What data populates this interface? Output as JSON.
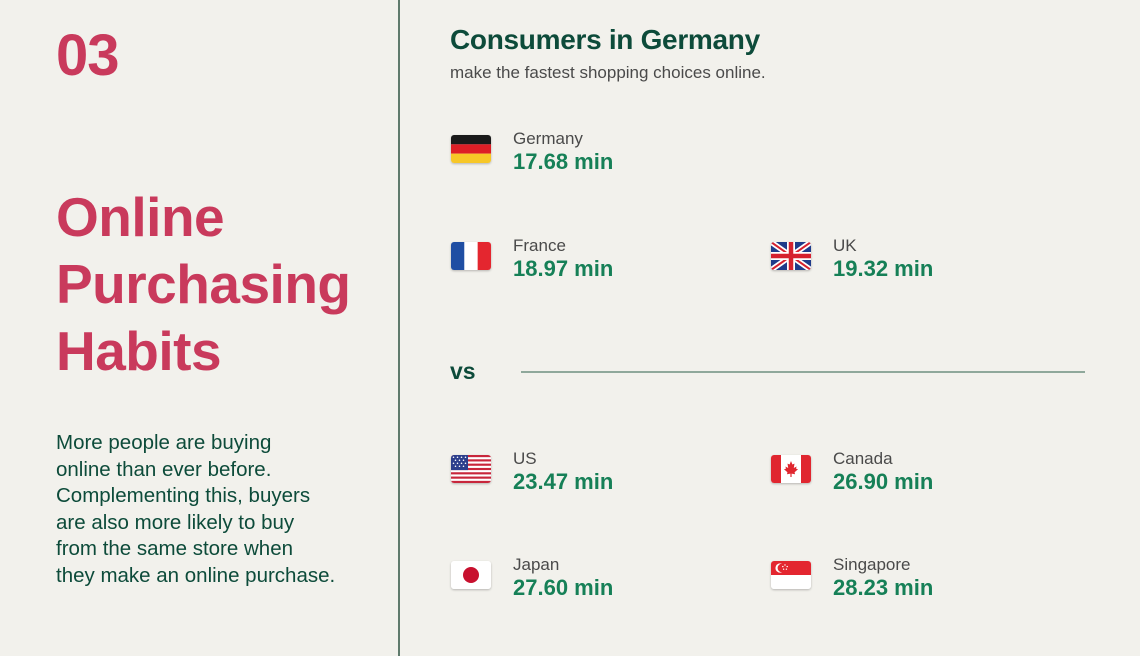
{
  "section_number": "03",
  "heading_lines": [
    "Online",
    "Purchasing",
    "Habits"
  ],
  "description_lines": [
    "More people are buying",
    "online than ever before.",
    "Complementing this, buyers",
    "are also more likely to buy",
    "from the same store when",
    "they make an online purchase."
  ],
  "title": "Consumers in Germany",
  "subtitle": "make the fastest shopping choices online.",
  "vs_label": "vs",
  "colors": {
    "accent_red": "#c93a5c",
    "dark_green": "#0d4b3a",
    "time_green": "#168057",
    "background": "#f2f1ec"
  },
  "entries": [
    {
      "flag": "germany-flag-icon",
      "country": "Germany",
      "time": "17.68 min"
    },
    {
      "flag": "france-flag-icon",
      "country": "France",
      "time": "18.97 min"
    },
    {
      "flag": "uk-flag-icon",
      "country": "UK",
      "time": "19.32 min"
    },
    {
      "flag": "us-flag-icon",
      "country": "US",
      "time": "23.47 min"
    },
    {
      "flag": "canada-flag-icon",
      "country": "Canada",
      "time": "26.90 min"
    },
    {
      "flag": "japan-flag-icon",
      "country": "Japan",
      "time": "27.60 min"
    },
    {
      "flag": "singapore-flag-icon",
      "country": "Singapore",
      "time": "28.23 min"
    }
  ]
}
